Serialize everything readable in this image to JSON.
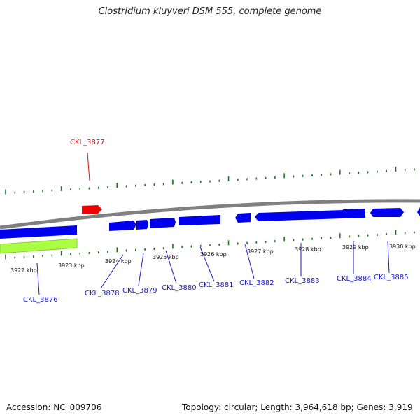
{
  "title": "Clostridium kluyveri DSM 555, complete genome",
  "footer": {
    "accession": "Accession: NC_009706",
    "summary": "Topology: circular; Length: 3,964,618 bp; Genes: 3,919"
  },
  "colors": {
    "backbone": "#808080",
    "forward_gene": "#0000ee",
    "reverse_gene": "#ee0000",
    "rna_gene": "#aaff44",
    "ticks": "#1a7a1a",
    "forward_label": "#1a1acc",
    "reverse_label": "#dd1111"
  },
  "scale_labels": [
    "3922 kbp",
    "3923 kbp",
    "3924 kbp",
    "3925 kbp",
    "3926 kbp",
    "3927 kbp",
    "3928 kbp",
    "3929 kbp",
    "3930 kbp"
  ],
  "genes": [
    {
      "label": "CKL_3876",
      "strand": "forward"
    },
    {
      "label": "CKL_3877",
      "strand": "reverse"
    },
    {
      "label": "CKL_3878",
      "strand": "forward"
    },
    {
      "label": "CKL_3879",
      "strand": "forward"
    },
    {
      "label": "CKL_3880",
      "strand": "forward"
    },
    {
      "label": "CKL_3881",
      "strand": "forward"
    },
    {
      "label": "CKL_3882",
      "strand": "forward"
    },
    {
      "label": "CKL_3883",
      "strand": "forward"
    },
    {
      "label": "CKL_3884",
      "strand": "forward"
    },
    {
      "label": "CKL_3885",
      "strand": "forward"
    }
  ]
}
